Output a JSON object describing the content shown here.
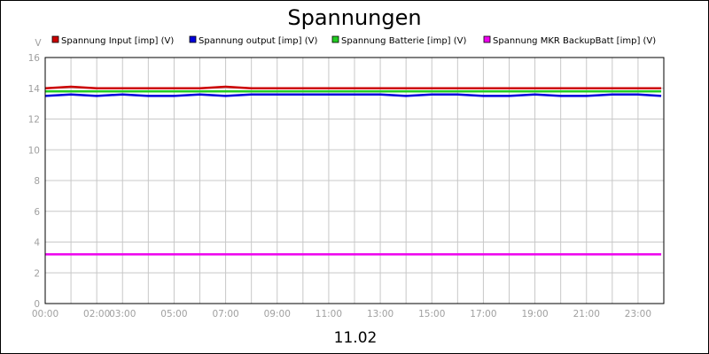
{
  "chart_data": {
    "type": "line",
    "title": "Spannungen",
    "subtitle": "11.02",
    "ylabel": "V",
    "xlabel": "",
    "ylim": [
      0,
      16
    ],
    "yticks": [
      0,
      2,
      4,
      6,
      8,
      10,
      12,
      14,
      16
    ],
    "xlim": [
      0,
      24
    ],
    "xticks": [
      {
        "value": 0,
        "label": "00:00"
      },
      {
        "value": 2,
        "label": "02:00"
      },
      {
        "value": 3,
        "label": "03:00"
      },
      {
        "value": 5,
        "label": "05:00"
      },
      {
        "value": 7,
        "label": "07:00"
      },
      {
        "value": 9,
        "label": "09:00"
      },
      {
        "value": 11,
        "label": "11:00"
      },
      {
        "value": 13,
        "label": "13:00"
      },
      {
        "value": 15,
        "label": "15:00"
      },
      {
        "value": 17,
        "label": "17:00"
      },
      {
        "value": 19,
        "label": "19:00"
      },
      {
        "value": 21,
        "label": "21:00"
      },
      {
        "value": 23,
        "label": "23:00"
      }
    ],
    "grid": true,
    "legend_position": "top",
    "x": [
      0,
      1,
      2,
      3,
      4,
      5,
      6,
      7,
      8,
      9,
      10,
      11,
      12,
      13,
      14,
      15,
      16,
      17,
      18,
      19,
      20,
      21,
      22,
      23,
      23.9
    ],
    "series": [
      {
        "name": "Spannung Input [imp] (V)",
        "color": "#cc0000",
        "values": [
          14.0,
          14.1,
          14.0,
          14.0,
          14.0,
          14.0,
          14.0,
          14.1,
          14.0,
          14.0,
          14.0,
          14.0,
          14.0,
          14.0,
          14.0,
          14.0,
          14.0,
          14.0,
          14.0,
          14.0,
          14.0,
          14.0,
          14.0,
          14.0,
          14.0
        ]
      },
      {
        "name": "Spannung output [imp] (V)",
        "color": "#0000dd",
        "values": [
          13.5,
          13.6,
          13.5,
          13.6,
          13.5,
          13.5,
          13.6,
          13.5,
          13.6,
          13.6,
          13.6,
          13.6,
          13.6,
          13.6,
          13.5,
          13.6,
          13.6,
          13.5,
          13.5,
          13.6,
          13.5,
          13.5,
          13.6,
          13.6,
          13.5
        ]
      },
      {
        "name": "Spannung Batterie [imp] (V)",
        "color": "#22cc22",
        "values": [
          13.8,
          13.8,
          13.8,
          13.8,
          13.8,
          13.8,
          13.8,
          13.8,
          13.8,
          13.8,
          13.8,
          13.8,
          13.8,
          13.8,
          13.8,
          13.8,
          13.8,
          13.8,
          13.8,
          13.8,
          13.8,
          13.8,
          13.8,
          13.8,
          13.8
        ]
      },
      {
        "name": "Spannung MKR BackupBatt [imp] (V)",
        "color": "#ee00ee",
        "values": [
          3.2,
          3.2,
          3.2,
          3.2,
          3.2,
          3.2,
          3.2,
          3.2,
          3.2,
          3.2,
          3.2,
          3.2,
          3.2,
          3.2,
          3.2,
          3.2,
          3.2,
          3.2,
          3.2,
          3.2,
          3.2,
          3.2,
          3.2,
          3.2,
          3.2
        ]
      }
    ]
  }
}
